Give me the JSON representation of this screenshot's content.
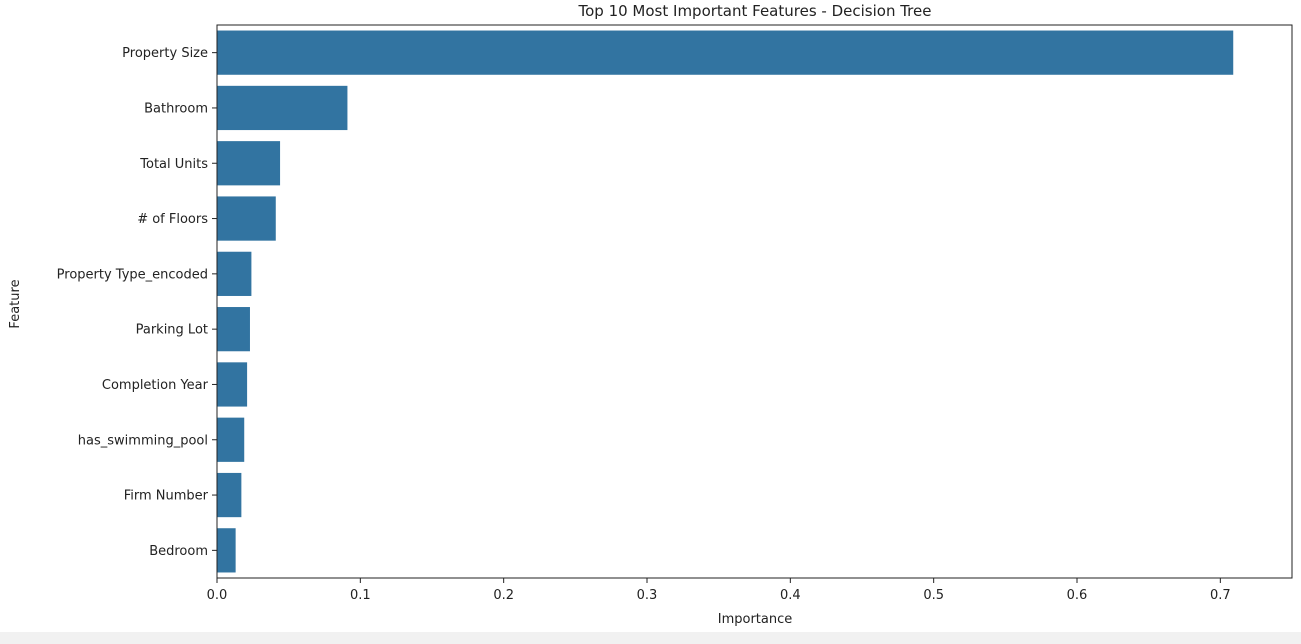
{
  "chart_data": {
    "type": "bar",
    "orientation": "horizontal",
    "title": "Top 10 Most Important Features - Decision Tree",
    "xlabel": "Importance",
    "ylabel": "Feature",
    "categories": [
      "Property Size",
      "Bathroom",
      "Total Units",
      "# of Floors",
      "Property Type_encoded",
      "Parking Lot",
      "Completion Year",
      "has_swimming_pool",
      "Firm Number",
      "Bedroom"
    ],
    "values": [
      0.709,
      0.091,
      0.044,
      0.041,
      0.024,
      0.023,
      0.021,
      0.019,
      0.017,
      0.013
    ],
    "xlim": [
      0,
      0.75
    ],
    "xticks": [
      "0.0",
      "0.1",
      "0.2",
      "0.3",
      "0.4",
      "0.5",
      "0.6",
      "0.7"
    ],
    "grid": false,
    "bar_color": "#3274a1"
  }
}
